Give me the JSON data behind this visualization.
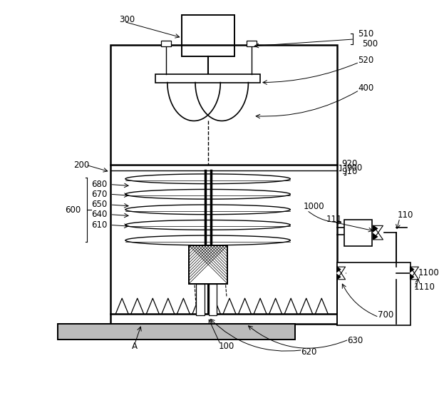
{
  "bg_color": "#ffffff",
  "line_color": "#000000",
  "font_size": 8.5,
  "fig_width": 6.23,
  "fig_height": 5.72
}
